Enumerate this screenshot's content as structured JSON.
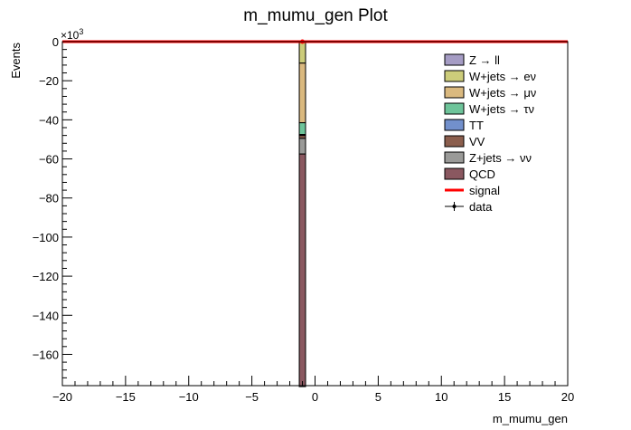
{
  "chart_data": {
    "type": "bar",
    "title": "m_mumu_gen Plot",
    "xlabel": "m_mumu_gen",
    "ylabel": "Events",
    "y_multiplier_label": "×10",
    "y_multiplier_exponent": "3",
    "xlim": [
      -20,
      20
    ],
    "ylim": [
      -176,
      0
    ],
    "x_ticks": [
      -20,
      -15,
      -10,
      -5,
      0,
      5,
      10,
      15,
      20
    ],
    "x_tick_labels": [
      "−20",
      "−15",
      "−10",
      "−5",
      "0",
      "5",
      "10",
      "15",
      "20"
    ],
    "y_ticks": [
      0,
      -20,
      -40,
      -60,
      -80,
      -100,
      -120,
      -140,
      -160
    ],
    "y_tick_labels": [
      "0",
      "−20",
      "−40",
      "−60",
      "−80",
      "−100",
      "−120",
      "−140",
      "−160"
    ],
    "bin": [
      -1.25,
      -0.75
    ],
    "stack": [
      {
        "name": "Z → ll",
        "color": "#a59cc4",
        "values": [
          -0.5
        ]
      },
      {
        "name": "W+jets → eν",
        "color": "#cccc7a",
        "values": [
          -10.5
        ]
      },
      {
        "name": "W+jets → μν",
        "color": "#dab97f",
        "values": [
          -30.5
        ]
      },
      {
        "name": "W+jets → τν",
        "color": "#6ec49a",
        "values": [
          -6
        ]
      },
      {
        "name": "TT",
        "color": "#7290cc",
        "values": [
          -0.5
        ]
      },
      {
        "name": "VV",
        "color": "#8b5e4d",
        "values": [
          -1.5
        ]
      },
      {
        "name": "Z+jets → νν",
        "color": "#9a9a98",
        "values": [
          -8
        ]
      },
      {
        "name": "QCD",
        "color": "#8a5860",
        "values": [
          -119
        ]
      }
    ],
    "signal": {
      "name": "signal",
      "color": "#ff0000",
      "x": [
        -20,
        20
      ],
      "y": [
        0,
        0
      ]
    },
    "data": {
      "name": "data",
      "x": [
        -1
      ],
      "y": [
        0
      ]
    },
    "legend": {
      "placement": "top-right",
      "entries": [
        {
          "label": "Z → ll",
          "kind": "box",
          "color": "#a59cc4"
        },
        {
          "label": "W+jets → eν",
          "kind": "box",
          "color": "#cccc7a"
        },
        {
          "label": "W+jets → μν",
          "kind": "box",
          "color": "#dab97f"
        },
        {
          "label": "W+jets → τν",
          "kind": "box",
          "color": "#6ec49a"
        },
        {
          "label": "TT",
          "kind": "box",
          "color": "#7290cc"
        },
        {
          "label": "VV",
          "kind": "box",
          "color": "#8b5e4d"
        },
        {
          "label": "Z+jets → νν",
          "kind": "box",
          "color": "#9a9a98"
        },
        {
          "label": "QCD",
          "kind": "box",
          "color": "#8a5860"
        },
        {
          "label": "signal",
          "kind": "line",
          "color": "#ff0000"
        },
        {
          "label": "data",
          "kind": "marker",
          "color": "#000000"
        }
      ]
    },
    "grid": false
  }
}
